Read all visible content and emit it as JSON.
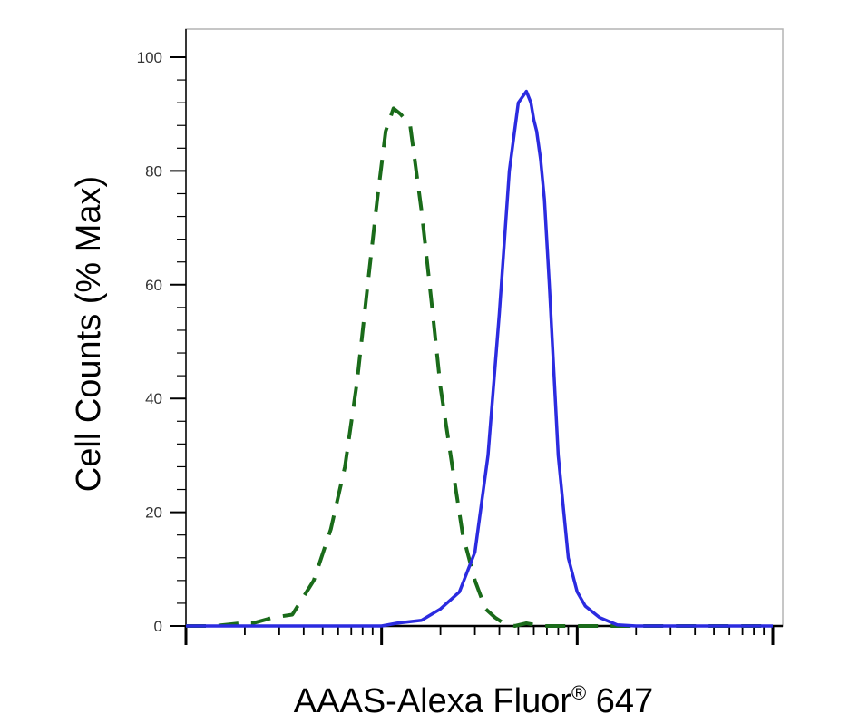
{
  "chart_data": {
    "type": "line",
    "title": "",
    "xlabel": "AAAS-Alexa Fluor",
    "xlabel_superscript": "®",
    "xlabel_suffix": "647",
    "ylabel": "Cell Counts (% Max)",
    "x_scale": "log",
    "xlim": [
      1,
      1000
    ],
    "ylim": [
      0,
      100
    ],
    "y_ticks": [
      0,
      20,
      40,
      60,
      80,
      100
    ],
    "grid": false,
    "legend": "none",
    "series": [
      {
        "style": "dashed",
        "color": "#1a6b1a",
        "x": [
          1,
          1.4,
          1.9,
          2.2,
          2.8,
          3.5,
          4.5,
          5.5,
          6.5,
          7.5,
          8.5,
          9.5,
          10.5,
          11.5,
          12.5,
          14,
          16,
          18,
          20,
          23,
          26,
          30,
          34,
          38,
          42,
          48,
          55,
          65,
          80,
          100,
          200,
          1000
        ],
        "y": [
          0,
          0,
          0.5,
          0.5,
          1.5,
          2,
          8,
          17,
          28,
          43,
          60,
          75,
          87,
          91,
          90,
          88,
          73,
          57,
          42,
          28,
          16,
          8,
          3,
          1.5,
          0.5,
          0,
          0.5,
          0,
          0,
          0,
          0,
          0
        ]
      },
      {
        "style": "solid",
        "color": "#2b2be0",
        "x": [
          1,
          10,
          12,
          16,
          20,
          25,
          30,
          35,
          40,
          45,
          50,
          55,
          58,
          60,
          62,
          65,
          68,
          72,
          80,
          90,
          100,
          110,
          130,
          160,
          200,
          300,
          1000
        ],
        "y": [
          0,
          0,
          0.5,
          1,
          3,
          6,
          13,
          30,
          55,
          80,
          92,
          94,
          92,
          89,
          87,
          82,
          75,
          60,
          30,
          12,
          6,
          3.5,
          1.5,
          0.2,
          0,
          0,
          0
        ]
      }
    ]
  }
}
